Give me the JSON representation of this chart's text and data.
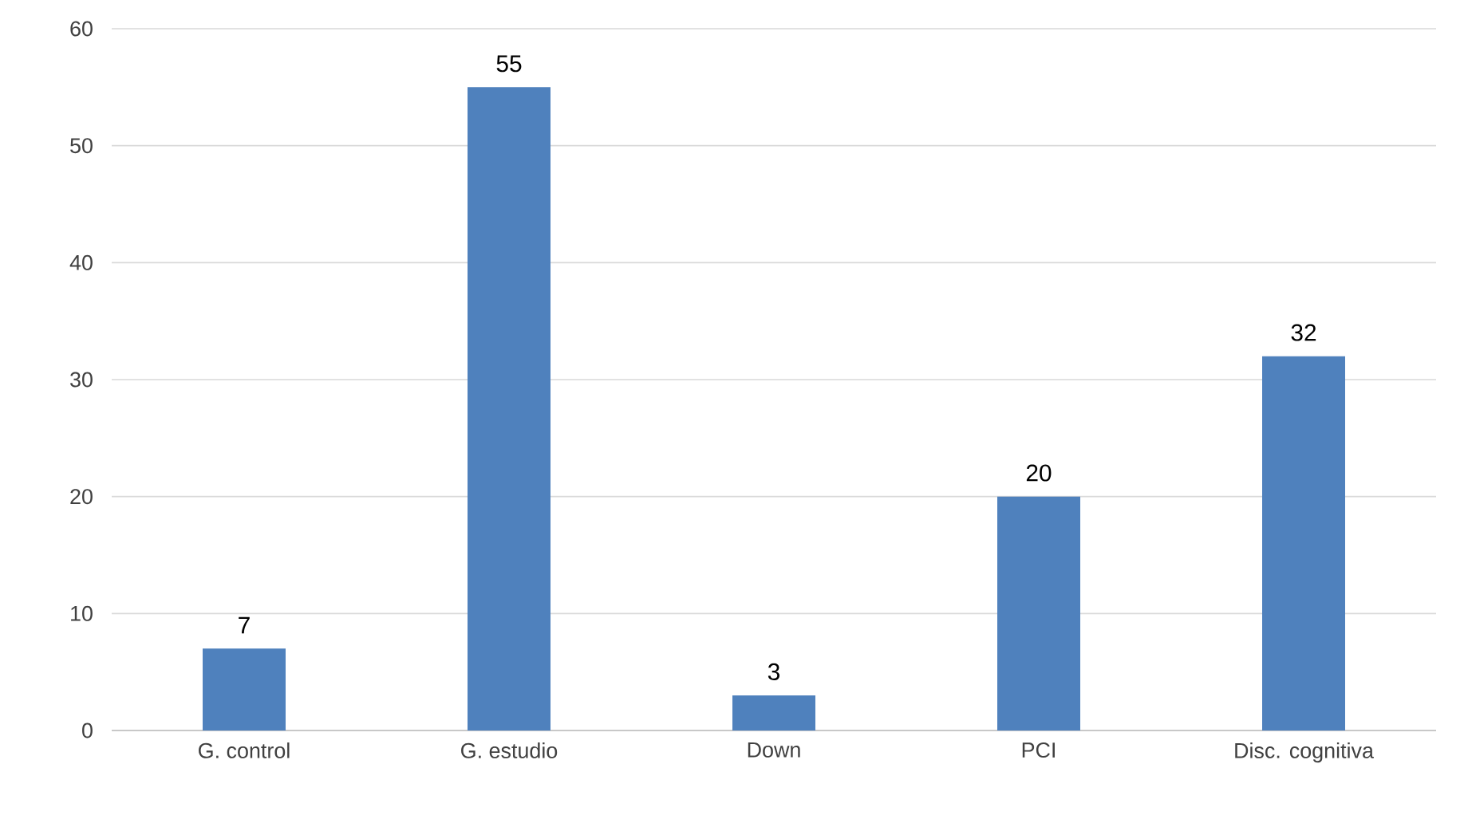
{
  "chart_data": {
    "type": "bar",
    "categories": [
      "G. control",
      "G. estudio",
      "Down",
      "PCI",
      "Disc. cognitiva"
    ],
    "values": [
      7,
      55,
      3,
      20,
      32
    ],
    "color": "#4f81bd",
    "ylim": [
      0,
      60
    ],
    "yticks": [
      0,
      10,
      20,
      30,
      40,
      50,
      60
    ],
    "grid": "y",
    "data_labels": true
  }
}
